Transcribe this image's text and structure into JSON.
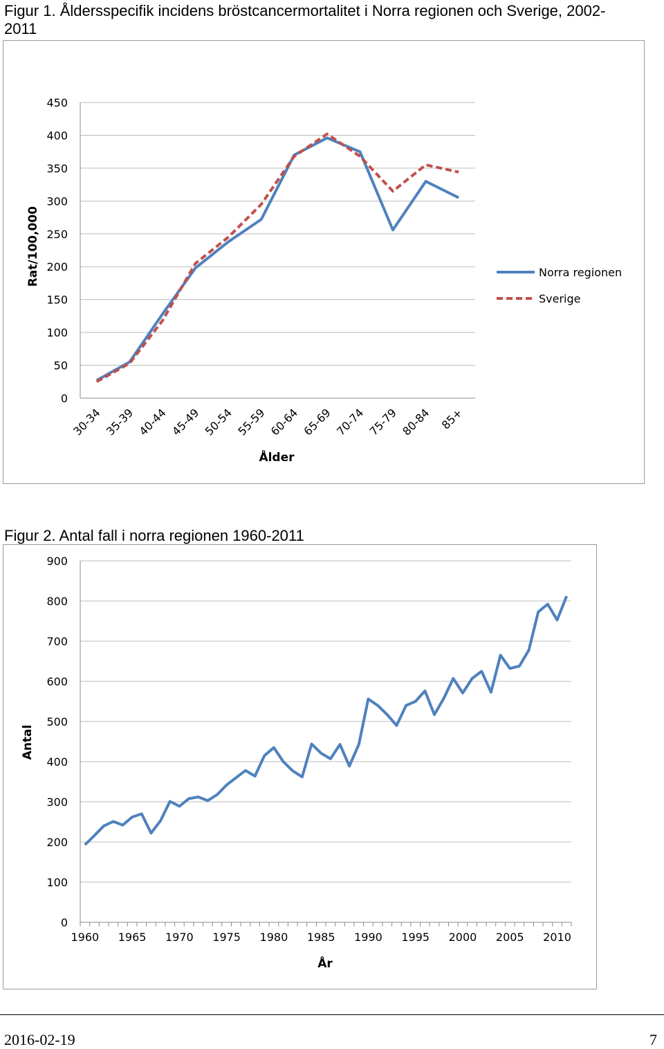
{
  "figure1": {
    "caption": "Figur 1. Åldersspecifik incidens bröstcancermortalitet i Norra regionen och Sverige, 2002-2011"
  },
  "figure2": {
    "caption": "Figur 2. Antal fall i norra regionen 1960-2011"
  },
  "footer": {
    "date": "2016-02-19",
    "page": "7"
  },
  "chart_data": [
    {
      "type": "line",
      "xlabel": "Ålder",
      "ylabel": "Rat/100,000",
      "ylim": [
        0,
        450
      ],
      "yticks": [
        0,
        50,
        100,
        150,
        200,
        250,
        300,
        350,
        400,
        450
      ],
      "grid": true,
      "legend_position": "right",
      "categories": [
        "30-34",
        "35-39",
        "40-44",
        "45-49",
        "50-54",
        "55-59",
        "60-64",
        "65-69",
        "70-74",
        "75-79",
        "80-84",
        "85+"
      ],
      "series": [
        {
          "name": "Norra regionen",
          "color": "#4f81bd",
          "dash": "solid",
          "values": [
            27,
            55,
            128,
            198,
            238,
            272,
            370,
            396,
            375,
            256,
            330,
            305
          ]
        },
        {
          "name": "Sverige",
          "color": "#c0504d",
          "dash": "dashed",
          "values": [
            25,
            53,
            118,
            205,
            245,
            295,
            368,
            402,
            368,
            315,
            355,
            344
          ]
        }
      ]
    },
    {
      "type": "line",
      "xlabel": "År",
      "ylabel": "Antal",
      "ylim": [
        0,
        900
      ],
      "yticks": [
        0,
        100,
        200,
        300,
        400,
        500,
        600,
        700,
        800,
        900
      ],
      "xlim": [
        1960,
        2011
      ],
      "xticks": [
        1960,
        1965,
        1970,
        1975,
        1980,
        1985,
        1990,
        1995,
        2000,
        2005,
        2010
      ],
      "grid": true,
      "series": [
        {
          "color": "#4f81bd",
          "x": [
            1960,
            1961,
            1962,
            1963,
            1964,
            1965,
            1966,
            1967,
            1968,
            1969,
            1970,
            1971,
            1972,
            1973,
            1974,
            1975,
            1976,
            1977,
            1978,
            1979,
            1980,
            1981,
            1982,
            1983,
            1984,
            1985,
            1986,
            1987,
            1988,
            1989,
            1990,
            1991,
            1992,
            1993,
            1994,
            1995,
            1996,
            1997,
            1998,
            1999,
            2000,
            2001,
            2002,
            2003,
            2004,
            2005,
            2006,
            2007,
            2008,
            2009,
            2010,
            2011
          ],
          "values": [
            193,
            216,
            240,
            251,
            242,
            262,
            270,
            222,
            253,
            301,
            289,
            308,
            312,
            303,
            318,
            342,
            360,
            378,
            364,
            415,
            435,
            400,
            377,
            362,
            444,
            421,
            407,
            443,
            389,
            443,
            556,
            540,
            517,
            490,
            540,
            550,
            576,
            517,
            558,
            607,
            571,
            607,
            625,
            573,
            665,
            632,
            638,
            678,
            773,
            792,
            753,
            812
          ]
        }
      ]
    }
  ]
}
